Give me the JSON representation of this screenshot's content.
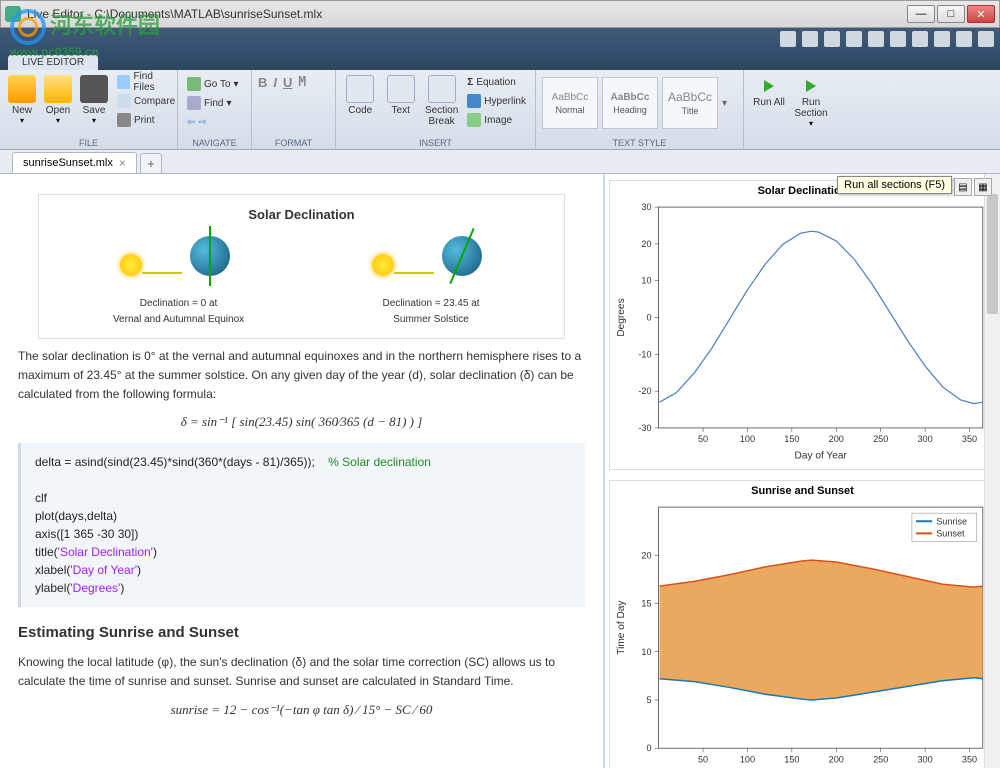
{
  "window": {
    "title": "Live Editor - C:\\Documents\\MATLAB\\sunriseSunset.mlx",
    "watermark_text": "河东软件园",
    "watermark_url": "www.pc0359.cn"
  },
  "ribbon": {
    "active_tab": "LIVE EDITOR",
    "groups": {
      "file": {
        "label": "FILE",
        "new": "New",
        "open": "Open",
        "save": "Save",
        "find_files": "Find Files",
        "compare": "Compare",
        "print": "Print"
      },
      "navigate": {
        "label": "NAVIGATE",
        "goto": "Go To",
        "find": "Find"
      },
      "format": {
        "label": "FORMAT"
      },
      "insert": {
        "label": "INSERT",
        "code": "Code",
        "text": "Text",
        "section_break": "Section Break",
        "equation": "Equation",
        "hyperlink": "Hyperlink",
        "image": "Image"
      },
      "text_style": {
        "label": "TEXT STYLE",
        "normal": "Normal",
        "heading": "Heading",
        "title": "Title",
        "sample": "AaBbCc"
      },
      "run": {
        "run_all": "Run All",
        "run_section": "Run Section"
      }
    },
    "tooltip": "Run all sections (F5)"
  },
  "tabs": {
    "doc": "sunriseSunset.mlx"
  },
  "document": {
    "fig1_title": "Solar Declination",
    "fig1_cap1_l1": "Declination = 0 at",
    "fig1_cap1_l2": "Vernal and Autumnal Equinox",
    "fig1_cap2_l1": "Declination = 23.45 at",
    "fig1_cap2_l2": "Summer Solstice",
    "para1": "The solar declination is 0° at the vernal and autumnal equinoxes and in the northern hemisphere rises to a maximum of 23.45° at the summer solstice. On any given day of the year (d), solar declination (δ) can be calculated from the following formula:",
    "formula1": "δ = sin⁻¹ [ sin(23.45) sin( 360⁄365 (d − 81) ) ]",
    "code1_l1a": "delta = asind(sind(23.45)*sind(360*(days - 81)/365));    ",
    "code1_l1b": "% Solar declination",
    "code1_l2": "clf",
    "code1_l3": "plot(days,delta)",
    "code1_l4": "axis([1 365 -30 30])",
    "code1_l5a": "title(",
    "code1_l5b": "'Solar Declination'",
    "code1_l5c": ")",
    "code1_l6a": "xlabel(",
    "code1_l6b": "'Day of Year'",
    "code1_l6c": ")",
    "code1_l7a": "ylabel(",
    "code1_l7b": "'Degrees'",
    "code1_l7c": ")",
    "h2": "Estimating Sunrise and Sunset",
    "para2": "Knowing the local latitude (φ), the sun's declination (δ) and the solar time correction (SC) allows us to calculate the time of sunrise and sunset. Sunrise and sunset are calculated in Standard Time.",
    "formula2": "sunrise = 12 − cos⁻¹(−tan φ tan δ) ⁄ 15° − SC ⁄ 60"
  },
  "chart1": {
    "type": "line",
    "title": "Solar Declination",
    "xlabel": "Day of Year",
    "ylabel": "Degrees",
    "xlim": [
      0,
      365
    ],
    "ylim": [
      -30,
      30
    ],
    "xticks": [
      50,
      100,
      150,
      200,
      250,
      300,
      350
    ],
    "yticks": [
      -30,
      -20,
      -10,
      0,
      10,
      20,
      30
    ],
    "line_color": "#4a7fc4",
    "background_color": "#ffffff",
    "data_points": [
      [
        1,
        -23.0
      ],
      [
        20,
        -20.4
      ],
      [
        40,
        -15.1
      ],
      [
        60,
        -8.3
      ],
      [
        81,
        0.0
      ],
      [
        100,
        7.5
      ],
      [
        120,
        14.5
      ],
      [
        140,
        19.9
      ],
      [
        160,
        22.9
      ],
      [
        172,
        23.45
      ],
      [
        180,
        23.2
      ],
      [
        200,
        20.8
      ],
      [
        220,
        15.9
      ],
      [
        240,
        9.2
      ],
      [
        264,
        0.0
      ],
      [
        280,
        -6.2
      ],
      [
        300,
        -13.2
      ],
      [
        320,
        -18.9
      ],
      [
        340,
        -22.4
      ],
      [
        355,
        -23.4
      ],
      [
        365,
        -23.0
      ]
    ]
  },
  "chart2": {
    "type": "area",
    "title": "Sunrise and Sunset",
    "xlabel": "Day of Year",
    "ylabel": "Time of Day",
    "xlim": [
      0,
      365
    ],
    "ylim": [
      0,
      25
    ],
    "xticks": [
      50,
      100,
      150,
      200,
      250,
      300,
      350
    ],
    "yticks": [
      0,
      5,
      10,
      15,
      20
    ],
    "sunrise_color": "#1f77b4",
    "sunset_color": "#d95319",
    "fill_color": "#e8a04c",
    "legend": {
      "sunrise": "Sunrise",
      "sunset": "Sunset"
    },
    "sunrise_points": [
      [
        1,
        7.2
      ],
      [
        40,
        6.9
      ],
      [
        80,
        6.3
      ],
      [
        120,
        5.6
      ],
      [
        160,
        5.1
      ],
      [
        172,
        5.0
      ],
      [
        200,
        5.2
      ],
      [
        240,
        5.8
      ],
      [
        280,
        6.4
      ],
      [
        320,
        7.0
      ],
      [
        355,
        7.3
      ],
      [
        365,
        7.2
      ]
    ],
    "sunset_points": [
      [
        1,
        16.8
      ],
      [
        40,
        17.3
      ],
      [
        80,
        18.0
      ],
      [
        120,
        18.8
      ],
      [
        160,
        19.4
      ],
      [
        172,
        19.5
      ],
      [
        200,
        19.3
      ],
      [
        240,
        18.6
      ],
      [
        280,
        17.8
      ],
      [
        320,
        17.0
      ],
      [
        355,
        16.7
      ],
      [
        365,
        16.8
      ]
    ]
  }
}
